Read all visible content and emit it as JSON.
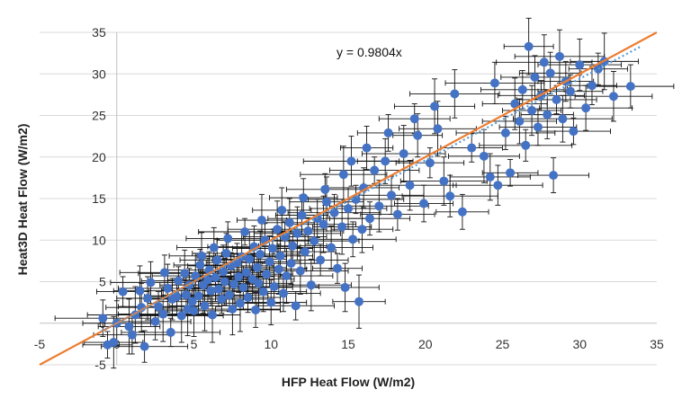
{
  "chart_data": {
    "type": "scatter",
    "title": "",
    "xlabel": "HFP Heat Flow (W/m2)",
    "ylabel": "Heat3D Heat Flow (W/m2)",
    "xlim": [
      -5,
      35
    ],
    "ylim": [
      -5,
      35
    ],
    "x_ticks": [
      "-5",
      "0",
      "5",
      "10",
      "15",
      "20",
      "25",
      "30",
      "35"
    ],
    "y_ticks": [
      "-5",
      "0",
      "5",
      "10",
      "15",
      "20",
      "25",
      "30",
      "35"
    ],
    "grid": "horizontal",
    "legend": "none",
    "annotation": "y = 0.9804x",
    "one_to_one_line": {
      "slope": 1,
      "color": "#ed7d31"
    },
    "trendline": {
      "slope": 0.9804,
      "style": "dotted",
      "color": "#5b9bd5"
    },
    "marker_color": "#4472c4",
    "error_bars": "x and y, approx ±2.5 W/m2 (varies per point)",
    "points": [
      [
        -0.6,
        -2.6
      ],
      [
        -0.2,
        -2.3
      ],
      [
        0.0,
        0.0
      ],
      [
        1.0,
        -1.4
      ],
      [
        1.8,
        -2.8
      ],
      [
        1.2,
        1.0
      ],
      [
        1.5,
        3.9
      ],
      [
        2.0,
        3.0
      ],
      [
        2.5,
        0.2
      ],
      [
        2.7,
        2.0
      ],
      [
        3.0,
        1.1
      ],
      [
        3.3,
        4.2
      ],
      [
        3.6,
        2.9
      ],
      [
        3.9,
        3.2
      ],
      [
        4.0,
        5.1
      ],
      [
        4.2,
        0.9
      ],
      [
        4.4,
        6.0
      ],
      [
        4.5,
        3.4
      ],
      [
        4.7,
        4.6
      ],
      [
        4.9,
        2.6
      ],
      [
        5.0,
        1.5
      ],
      [
        5.1,
        5.7
      ],
      [
        5.3,
        3.3
      ],
      [
        5.4,
        7.0
      ],
      [
        5.6,
        4.6
      ],
      [
        5.7,
        2.1
      ],
      [
        5.9,
        5.2
      ],
      [
        6.0,
        6.4
      ],
      [
        6.1,
        3.9
      ],
      [
        6.2,
        1.0
      ],
      [
        6.4,
        5.5
      ],
      [
        6.5,
        7.6
      ],
      [
        6.6,
        4.1
      ],
      [
        6.8,
        2.9
      ],
      [
        6.9,
        6.2
      ],
      [
        7.0,
        5.0
      ],
      [
        7.1,
        8.4
      ],
      [
        7.3,
        3.4
      ],
      [
        7.4,
        6.9
      ],
      [
        7.5,
        1.7
      ],
      [
        7.6,
        4.7
      ],
      [
        7.8,
        7.3
      ],
      [
        7.9,
        5.6
      ],
      [
        8.0,
        2.4
      ],
      [
        8.1,
        8.0
      ],
      [
        8.2,
        4.3
      ],
      [
        8.4,
        6.1
      ],
      [
        8.5,
        3.1
      ],
      [
        8.6,
        7.7
      ],
      [
        8.8,
        5.3
      ],
      [
        8.9,
        9.2
      ],
      [
        9.0,
        1.6
      ],
      [
        9.1,
        6.7
      ],
      [
        9.2,
        4.8
      ],
      [
        9.3,
        8.3
      ],
      [
        9.5,
        3.8
      ],
      [
        9.6,
        10.0
      ],
      [
        9.7,
        5.9
      ],
      [
        9.9,
        7.4
      ],
      [
        10.0,
        2.5
      ],
      [
        10.1,
        9.0
      ],
      [
        10.2,
        4.4
      ],
      [
        10.4,
        11.3
      ],
      [
        10.5,
        6.5
      ],
      [
        10.6,
        8.1
      ],
      [
        10.8,
        3.6
      ],
      [
        10.9,
        10.4
      ],
      [
        11.0,
        5.7
      ],
      [
        11.2,
        12.1
      ],
      [
        11.3,
        7.2
      ],
      [
        11.4,
        9.3
      ],
      [
        11.6,
        2.1
      ],
      [
        11.7,
        10.8
      ],
      [
        11.9,
        6.3
      ],
      [
        12.0,
        13.0
      ],
      [
        12.2,
        8.6
      ],
      [
        12.4,
        11.1
      ],
      [
        12.6,
        4.6
      ],
      [
        12.8,
        9.9
      ],
      [
        13.0,
        12.6
      ],
      [
        13.2,
        7.6
      ],
      [
        13.4,
        11.9
      ],
      [
        13.6,
        14.6
      ],
      [
        13.9,
        9.1
      ],
      [
        14.1,
        13.3
      ],
      [
        14.3,
        6.6
      ],
      [
        14.6,
        11.6
      ],
      [
        14.8,
        4.3
      ],
      [
        15.0,
        13.8
      ],
      [
        15.3,
        10.1
      ],
      [
        15.5,
        14.9
      ],
      [
        15.7,
        2.6
      ],
      [
        15.9,
        11.3
      ],
      [
        16.0,
        16.3
      ],
      [
        16.4,
        12.6
      ],
      [
        16.7,
        18.4
      ],
      [
        17.0,
        14.1
      ],
      [
        17.4,
        19.5
      ],
      [
        17.8,
        15.4
      ],
      [
        18.2,
        13.1
      ],
      [
        18.6,
        20.4
      ],
      [
        19.0,
        16.6
      ],
      [
        19.5,
        22.6
      ],
      [
        19.9,
        14.4
      ],
      [
        20.3,
        19.3
      ],
      [
        20.8,
        23.4
      ],
      [
        21.2,
        17.1
      ],
      [
        21.6,
        15.3
      ],
      [
        22.4,
        13.4
      ],
      [
        23.0,
        21.1
      ],
      [
        23.8,
        20.1
      ],
      [
        24.2,
        17.6
      ],
      [
        24.7,
        16.6
      ],
      [
        25.2,
        22.9
      ],
      [
        25.5,
        18.1
      ],
      [
        25.8,
        26.4
      ],
      [
        26.1,
        24.3
      ],
      [
        26.3,
        28.1
      ],
      [
        26.5,
        21.4
      ],
      [
        26.7,
        33.3
      ],
      [
        26.9,
        25.6
      ],
      [
        27.1,
        29.6
      ],
      [
        27.3,
        23.6
      ],
      [
        27.5,
        27.4
      ],
      [
        27.7,
        31.4
      ],
      [
        27.9,
        25.1
      ],
      [
        28.1,
        30.1
      ],
      [
        28.3,
        17.8
      ],
      [
        28.5,
        26.9
      ],
      [
        28.7,
        32.1
      ],
      [
        28.9,
        24.6
      ],
      [
        29.1,
        29.1
      ],
      [
        29.4,
        27.9
      ],
      [
        29.6,
        23.1
      ],
      [
        30.0,
        31.1
      ],
      [
        30.4,
        25.9
      ],
      [
        30.8,
        28.6
      ],
      [
        31.2,
        30.6
      ],
      [
        31.6,
        31.5
      ],
      [
        32.2,
        27.3
      ],
      [
        33.3,
        28.5
      ],
      [
        -0.9,
        0.6
      ],
      [
        0.4,
        3.8
      ],
      [
        0.8,
        -0.4
      ],
      [
        1.6,
        1.9
      ],
      [
        2.2,
        4.9
      ],
      [
        3.1,
        6.1
      ],
      [
        3.5,
        -1.1
      ],
      [
        4.6,
        1.7
      ],
      [
        5.5,
        8.1
      ],
      [
        6.3,
        9.1
      ],
      [
        7.2,
        10.2
      ],
      [
        8.3,
        11.0
      ],
      [
        9.4,
        12.4
      ],
      [
        10.7,
        13.6
      ],
      [
        12.1,
        15.1
      ],
      [
        13.5,
        16.1
      ],
      [
        14.7,
        17.9
      ],
      [
        15.2,
        19.5
      ],
      [
        16.2,
        21.1
      ],
      [
        17.6,
        22.9
      ],
      [
        19.3,
        24.6
      ],
      [
        20.6,
        26.1
      ],
      [
        21.9,
        27.6
      ],
      [
        24.5,
        28.9
      ]
    ]
  }
}
